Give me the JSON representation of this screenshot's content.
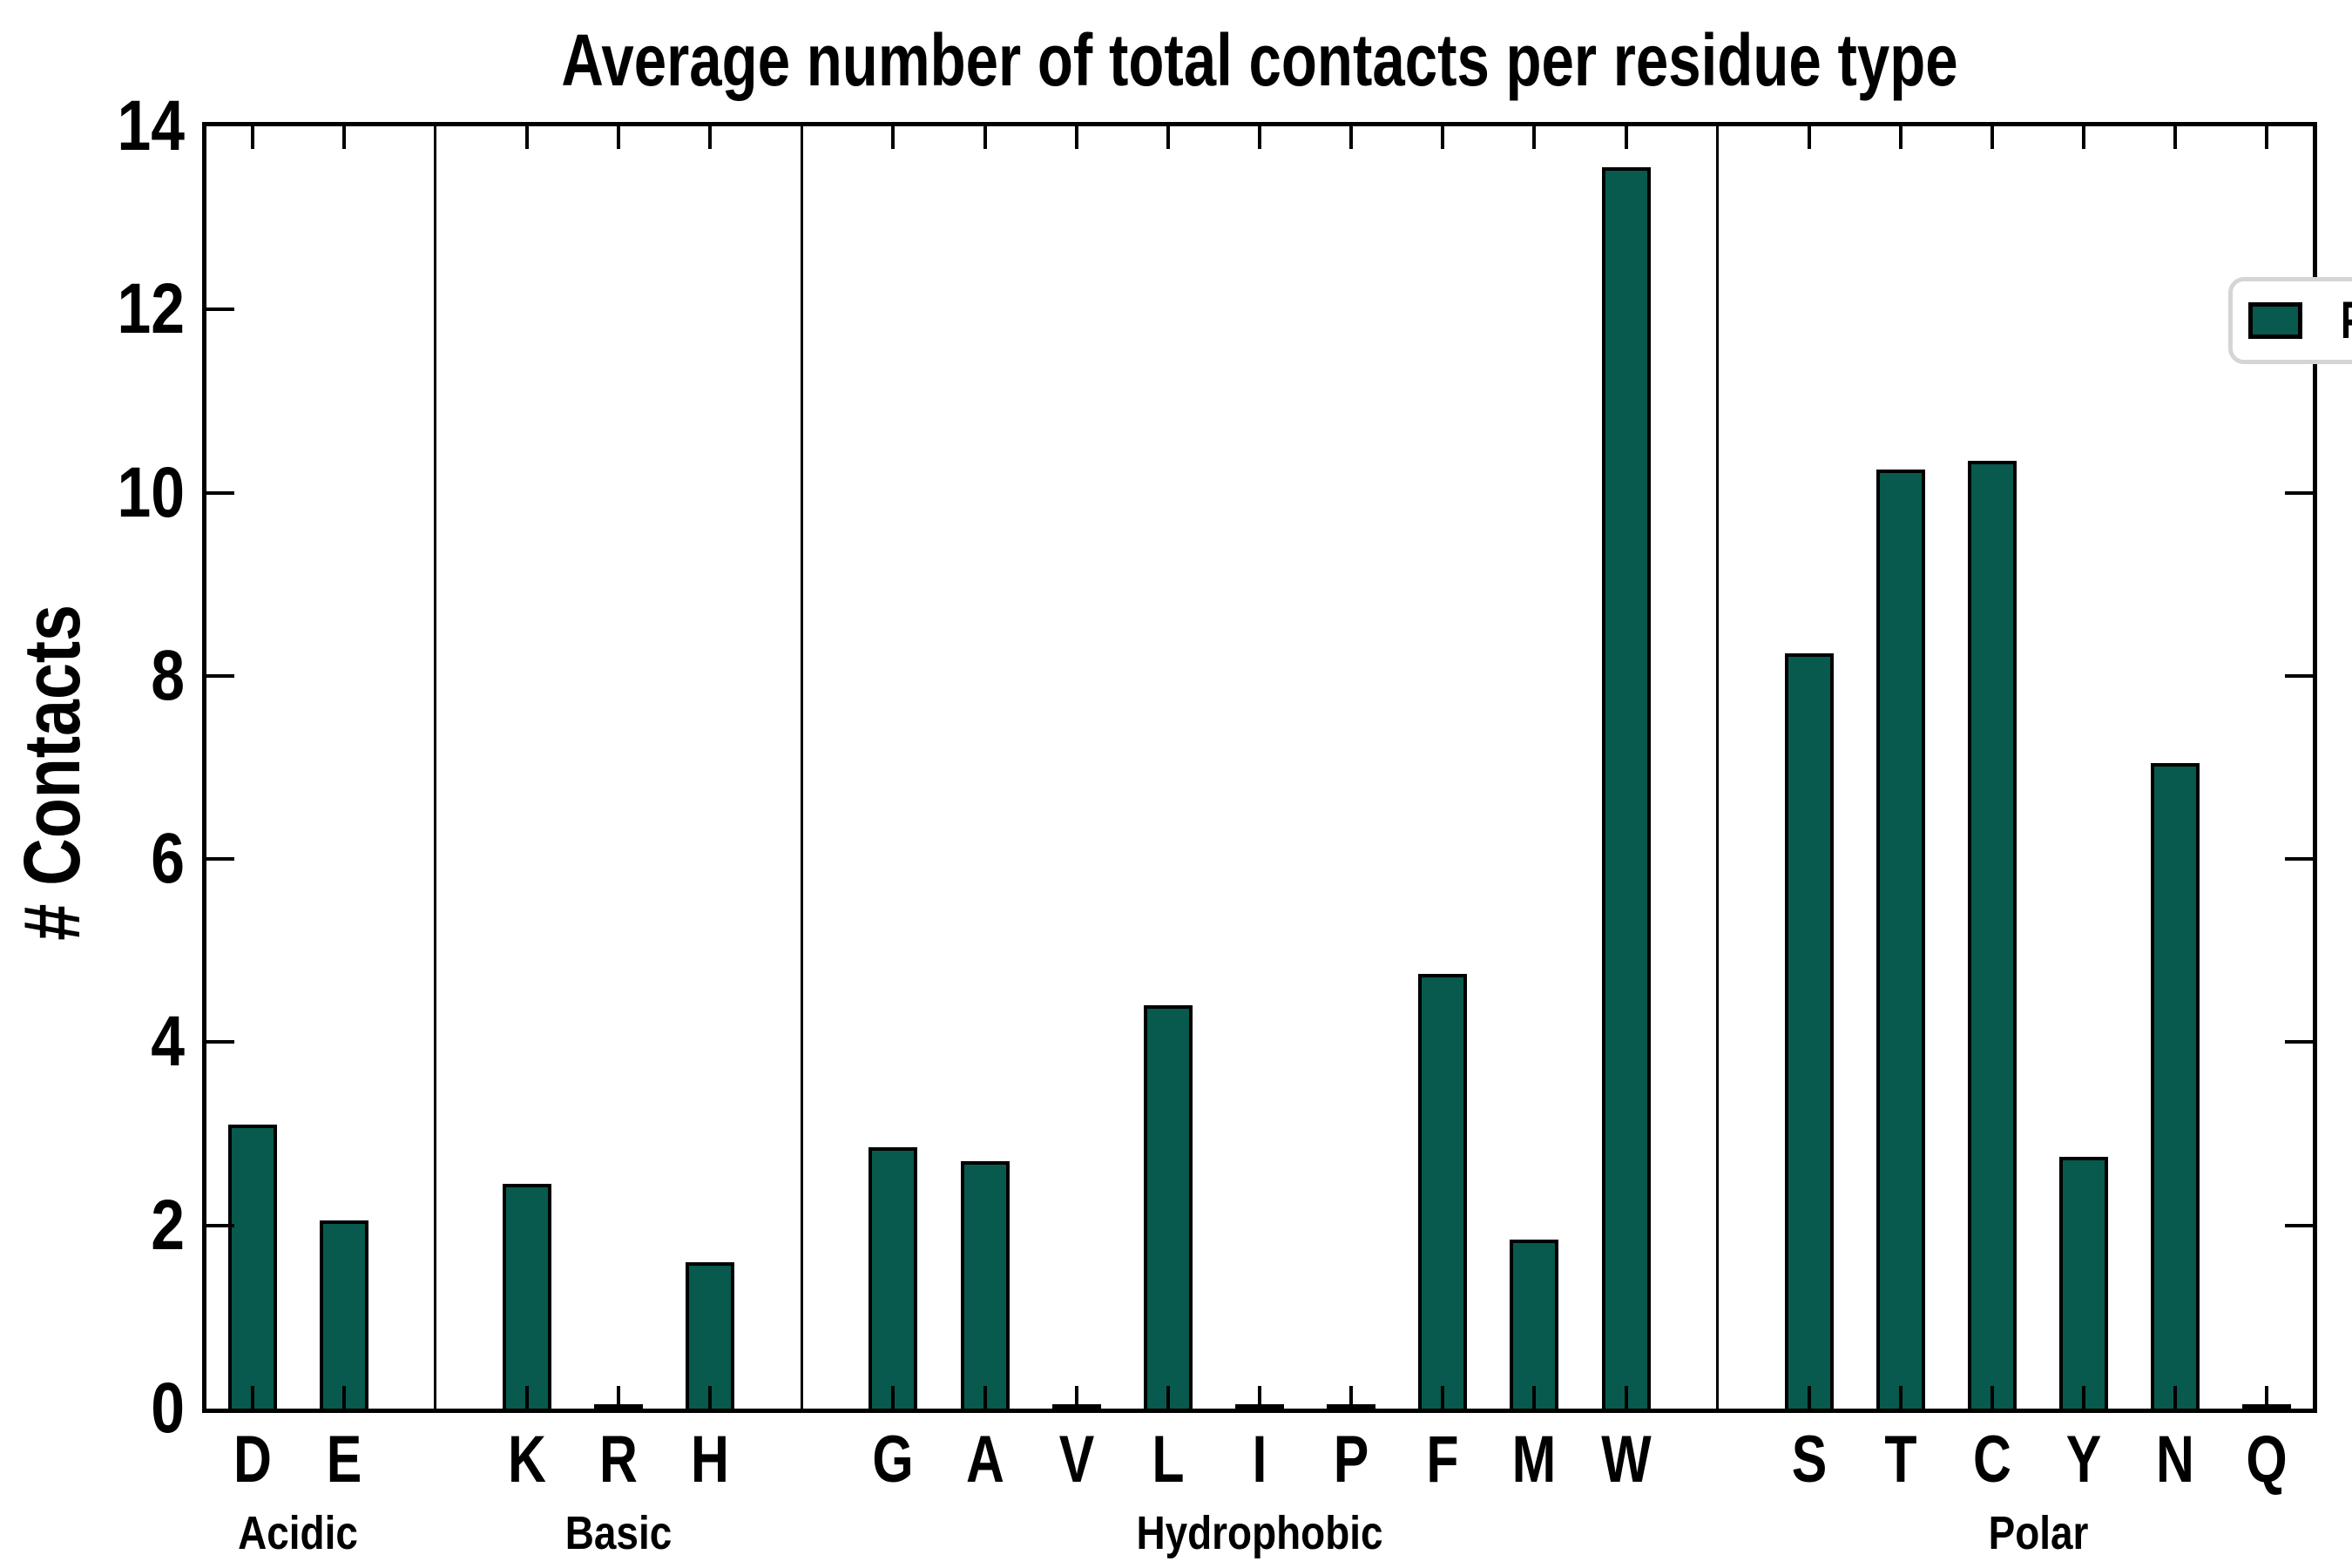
{
  "title": "Average number of total contacts per residue type",
  "ylabel": "# Contacts",
  "legend": {
    "label": "POPC",
    "position": "upper right"
  },
  "colors": {
    "bar_fill": "#075a4d",
    "bar_edge": "#000000",
    "axis": "#000000",
    "legend_border": "#d5d5d5",
    "background": "#ffffff"
  },
  "chart_data": {
    "type": "bar",
    "title": "Average number of total contacts per residue type",
    "xlabel": "",
    "ylabel": "# Contacts",
    "ylim": [
      0,
      14
    ],
    "yticks": [
      0,
      2,
      4,
      6,
      8,
      10,
      12,
      14
    ],
    "grid": false,
    "legend_entries": [
      "POPC"
    ],
    "categories": [
      "D",
      "E",
      "K",
      "R",
      "H",
      "G",
      "A",
      "V",
      "L",
      "I",
      "P",
      "F",
      "M",
      "W",
      "S",
      "T",
      "C",
      "Y",
      "N",
      "Q"
    ],
    "series": [
      {
        "name": "POPC",
        "values": [
          3.1,
          2.05,
          2.45,
          0.02,
          1.6,
          2.85,
          2.7,
          0.02,
          4.4,
          0.02,
          0.02,
          4.75,
          1.85,
          13.55,
          8.25,
          10.25,
          10.35,
          2.75,
          7.05,
          0.02
        ]
      }
    ],
    "groups": [
      {
        "label": "Acidic",
        "categories": [
          "D",
          "E"
        ]
      },
      {
        "label": "Basic",
        "categories": [
          "K",
          "R",
          "H"
        ]
      },
      {
        "label": "Hydrophobic",
        "categories": [
          "G",
          "A",
          "V",
          "L",
          "I",
          "P",
          "F",
          "M",
          "W"
        ]
      },
      {
        "label": "Polar",
        "categories": [
          "S",
          "T",
          "C",
          "Y",
          "N",
          "Q"
        ]
      }
    ]
  }
}
